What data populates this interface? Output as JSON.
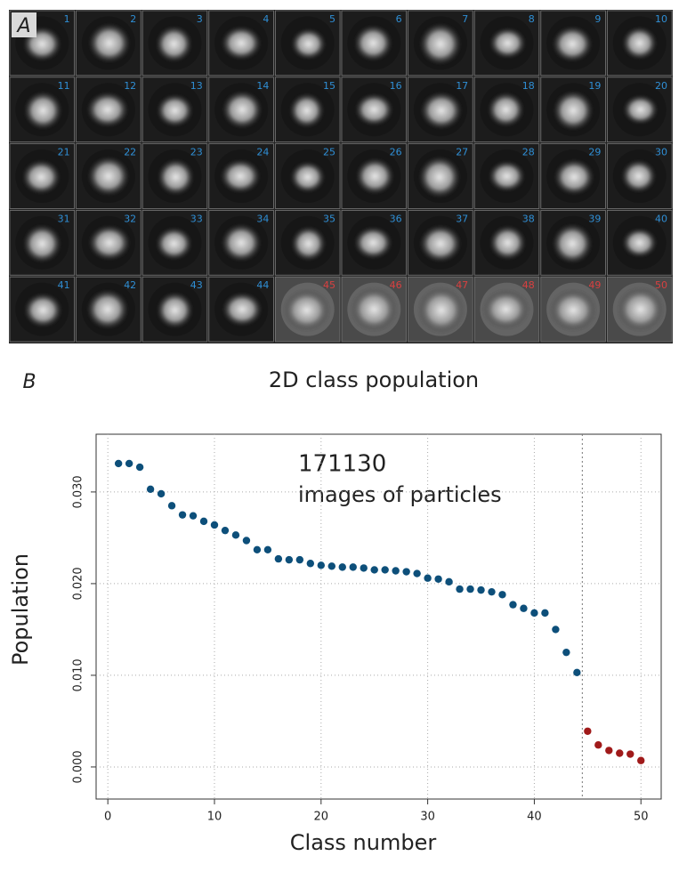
{
  "panel_a": {
    "label": "A",
    "groups": [
      {
        "color": "#2f8fd6",
        "background": "#1c1c1c",
        "classes": [
          1,
          2,
          3,
          4,
          5,
          6,
          7,
          8,
          9,
          10,
          11,
          12,
          13,
          14,
          15,
          16,
          17,
          18,
          19,
          20,
          21,
          22,
          23,
          24,
          25,
          26,
          27,
          28,
          29,
          30,
          31,
          32,
          33,
          34,
          35,
          36,
          37,
          38,
          39,
          40,
          41,
          42,
          43,
          44
        ]
      },
      {
        "color": "#d94040",
        "background": "#4a4a4a",
        "classes": [
          45,
          46,
          47,
          48,
          49,
          50
        ]
      }
    ]
  },
  "chart_data": {
    "type": "scatter",
    "panel_label": "B",
    "title": "2D class population",
    "annotations": [
      "171130",
      "images of particles"
    ],
    "x_label": "Class number",
    "y_label": "Population",
    "series": [
      {
        "color": "#0d4f7a",
        "x": [
          1,
          2,
          3,
          4,
          5,
          6,
          7,
          8,
          9,
          10,
          11,
          12,
          13,
          14,
          15,
          16,
          17,
          18,
          19,
          20,
          21,
          22,
          23,
          24,
          25,
          26,
          27,
          28,
          29,
          30,
          31,
          32,
          33,
          34,
          35,
          36,
          37,
          38,
          39,
          40,
          41,
          42,
          43,
          44
        ],
        "values": [
          0.0331,
          0.0331,
          0.0327,
          0.0303,
          0.0298,
          0.0285,
          0.0275,
          0.0274,
          0.0268,
          0.0264,
          0.0258,
          0.0253,
          0.0247,
          0.0237,
          0.0237,
          0.0227,
          0.0226,
          0.0226,
          0.0222,
          0.022,
          0.0219,
          0.0218,
          0.0218,
          0.0217,
          0.0215,
          0.0215,
          0.0214,
          0.0213,
          0.0211,
          0.0206,
          0.0205,
          0.0202,
          0.0194,
          0.0194,
          0.0193,
          0.0191,
          0.0188,
          0.0177,
          0.0173,
          0.0168,
          0.0168,
          0.015,
          0.0125,
          0.0103
        ]
      },
      {
        "color": "#a01a1a",
        "x": [
          45,
          46,
          47,
          48,
          49,
          50
        ],
        "values": [
          0.0039,
          0.0024,
          0.0018,
          0.0015,
          0.0014,
          0.0007
        ]
      }
    ],
    "xlim": [
      -1.1,
      51.9
    ],
    "ylim": [
      -0.0035,
      0.0363
    ],
    "xticks": [
      0,
      10,
      20,
      30,
      40,
      50
    ],
    "yticks": [
      {
        "value": 0,
        "label": "0.000"
      },
      {
        "value": 0.01,
        "label": "0.010"
      },
      {
        "value": 0.02,
        "label": "0.020"
      },
      {
        "value": 0.03,
        "label": "0.030"
      }
    ],
    "grid": true,
    "divider_x": 44.5
  }
}
